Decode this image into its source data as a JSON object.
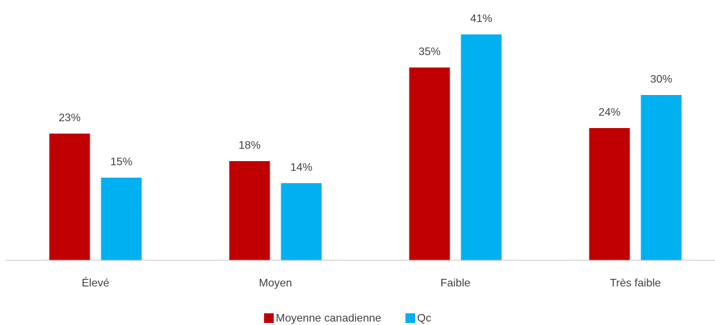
{
  "chart_data": {
    "type": "bar",
    "categories": [
      "Élevé",
      "Moyen",
      "Faible",
      "Très faible"
    ],
    "series": [
      {
        "name": "Moyenne canadienne",
        "color": "#c00000",
        "values": [
          23,
          18,
          35,
          24
        ],
        "value_labels": [
          "23%",
          "18%",
          "35%",
          "24%"
        ]
      },
      {
        "name": "Qc",
        "color": "#00b0f0",
        "values": [
          15,
          14,
          41,
          30
        ],
        "value_labels": [
          "15%",
          "14%",
          "41%",
          "30%"
        ]
      }
    ],
    "ylim": [
      0,
      45
    ],
    "legend": "bottom"
  }
}
